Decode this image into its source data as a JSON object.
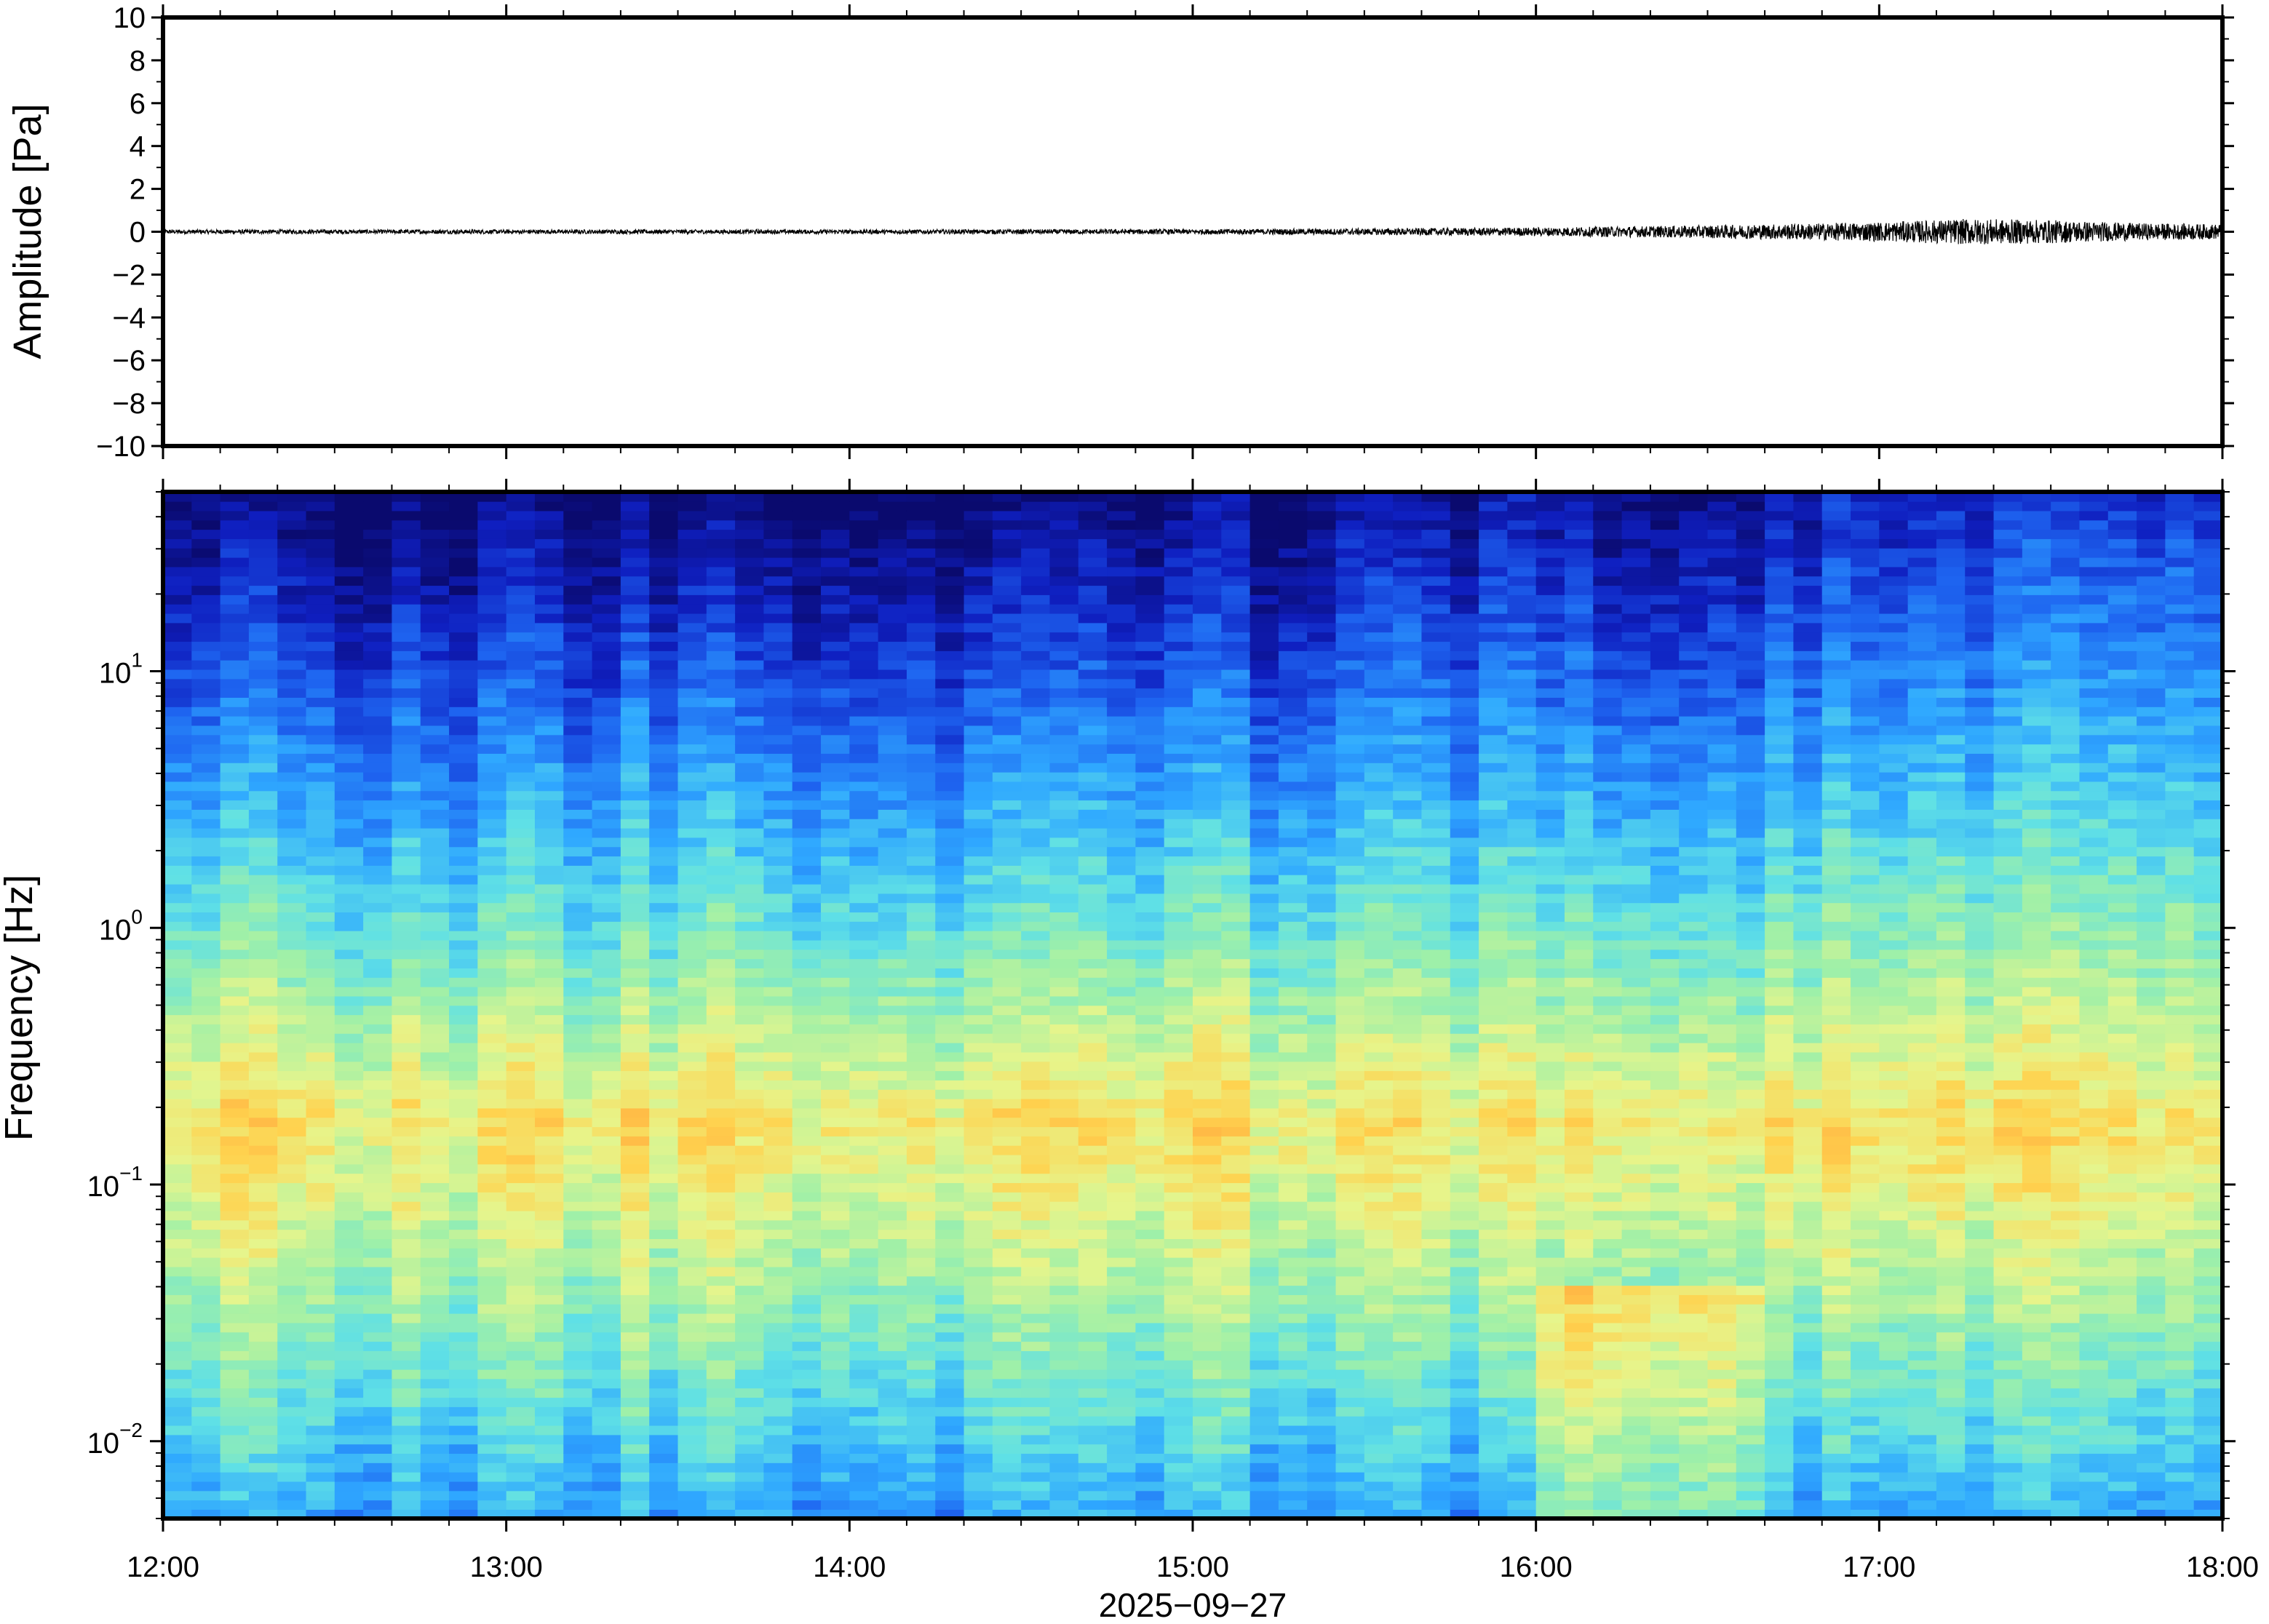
{
  "chart_data": [
    {
      "type": "line",
      "ylabel": "Amplitude [Pa]",
      "ylim": [
        -10,
        10
      ],
      "yticks": [
        "10",
        "8",
        "6",
        "4",
        "2",
        "0",
        "−2",
        "−4",
        "−6",
        "−8",
        "−10"
      ],
      "ytick_values": [
        10,
        8,
        6,
        4,
        2,
        0,
        -2,
        -4,
        -6,
        -8,
        -10
      ],
      "xlim": [
        "12:00",
        "18:00"
      ],
      "grid": false,
      "series": [
        {
          "x": [
            "12:00",
            "13:00",
            "14:00",
            "15:00",
            "15:30",
            "16:00",
            "16:30",
            "17:00",
            "17:15",
            "17:30",
            "17:45",
            "18:00"
          ],
          "envelope": [
            0.1,
            0.1,
            0.1,
            0.12,
            0.15,
            0.2,
            0.3,
            0.45,
            0.6,
            0.55,
            0.4,
            0.35
          ]
        }
      ]
    },
    {
      "type": "heatmap",
      "ylabel": "Frequency [Hz]",
      "yscale": "log",
      "ylim": [
        0.005,
        50
      ],
      "yticks": [
        {
          "base": "10",
          "exp": "1",
          "value": 10
        },
        {
          "base": "10",
          "exp": "0",
          "value": 1
        },
        {
          "base": "10",
          "exp": "−1",
          "value": 0.1
        },
        {
          "base": "10",
          "exp": "−2",
          "value": 0.01
        }
      ],
      "xlabel": "2025−09−27",
      "xticks": [
        "12:00",
        "13:00",
        "14:00",
        "15:00",
        "16:00",
        "17:00",
        "18:00"
      ],
      "colormap": [
        "#0a0a6e",
        "#0f1fc0",
        "#1e64f0",
        "#2fa8ff",
        "#5fe0e6",
        "#9ff0a8",
        "#e6f58c",
        "#ffd24e",
        "#ff9a3c"
      ],
      "peak_band_hz": 0.18,
      "grid": false
    }
  ]
}
